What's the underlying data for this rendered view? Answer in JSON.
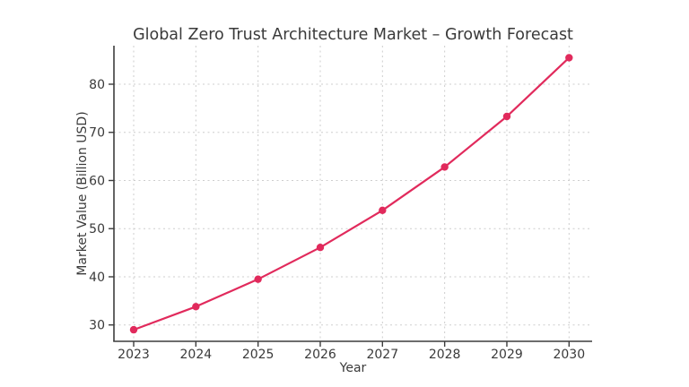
{
  "chart_data": {
    "type": "line",
    "title": "Global Zero Trust Architecture Market – Growth Forecast",
    "xlabel": "Year",
    "ylabel": "Market Value (Billion USD)",
    "categories": [
      "2023",
      "2024",
      "2025",
      "2026",
      "2027",
      "2028",
      "2029",
      "2030"
    ],
    "series": [
      {
        "name": "Market Value",
        "values": [
          29.0,
          33.8,
          39.5,
          46.1,
          53.8,
          62.8,
          73.3,
          85.5
        ]
      }
    ],
    "yticks": [
      30,
      40,
      50,
      60,
      70,
      80
    ],
    "ylim": [
      26.6,
      88.0
    ],
    "grid": true,
    "grid_style": "dashed",
    "legend": "none",
    "marker": "circle"
  },
  "colors": {
    "line": "#e12a5c",
    "marker": "#e12a5c",
    "grid": "#cdcdcd",
    "spine": "#3d3d3d",
    "tick": "#3d3d3d",
    "text": "#3a3a3a",
    "background": "#ffffff"
  }
}
